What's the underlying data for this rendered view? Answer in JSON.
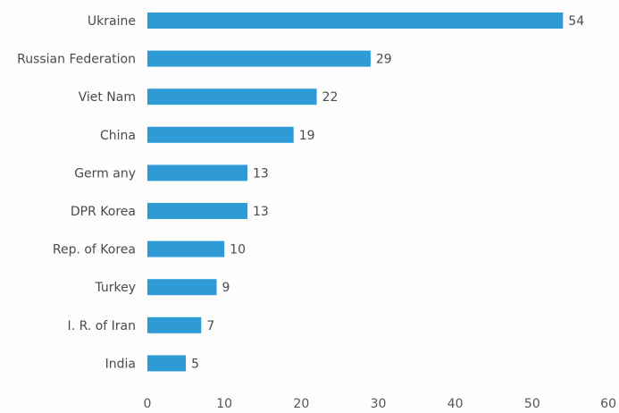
{
  "chart_data": {
    "type": "bar",
    "orientation": "horizontal",
    "title": "",
    "xlabel": "",
    "ylabel": "",
    "categories": [
      "Ukraine",
      "Russian Federation",
      "Viet Nam",
      "China",
      "Germ any",
      "DPR Korea",
      "Rep. of Korea",
      "Turkey",
      "I. R. of Iran",
      "India"
    ],
    "values": [
      54,
      29,
      22,
      19,
      13,
      13,
      10,
      9,
      7,
      5
    ],
    "xlim": [
      0,
      60
    ],
    "xticks": [
      0,
      10,
      20,
      30,
      40,
      50,
      60
    ],
    "tick_labels": [
      "0",
      "10",
      "20",
      "30",
      "40",
      "50",
      "60"
    ],
    "value_labels": [
      "54",
      "29",
      "22",
      "19",
      "13",
      "13",
      "10",
      "9",
      "7",
      "5"
    ],
    "grid": false,
    "legend": "none",
    "bar_color": "#2e9bd6",
    "text_color": "#4a4a4a"
  }
}
